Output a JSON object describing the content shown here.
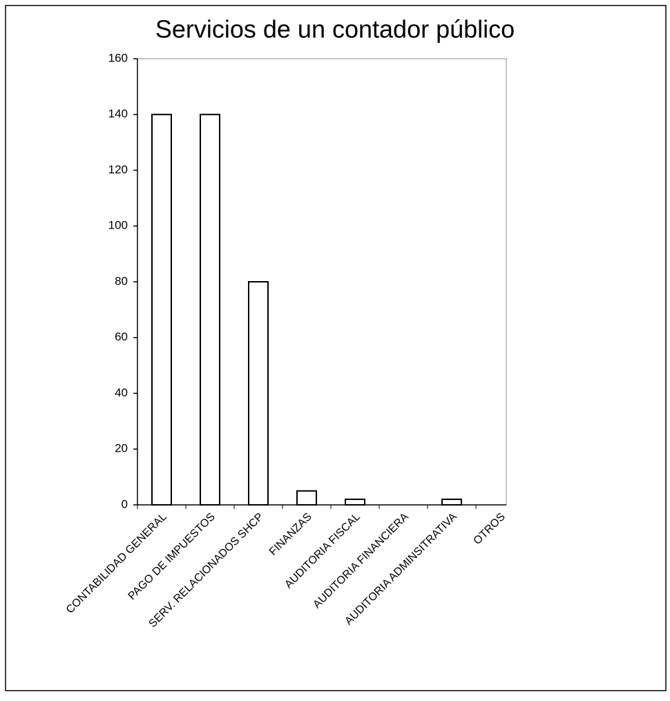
{
  "chart_data": {
    "type": "bar",
    "title": "Servicios de un contador público",
    "categories": [
      "CONTABILIDAD GENERAL",
      "PAGO DE IMPUESTOS",
      "SERV. RELACIONADOS SHCP",
      "FINANZAS",
      "AUDITORIA FISCAL",
      "AUDITORIA FINANCIERA",
      "AUDITORIA ADMINSITRATIVA",
      "OTROS"
    ],
    "values": [
      140,
      140,
      80,
      5,
      2,
      0,
      2,
      0
    ],
    "color": "#ffffff",
    "ylim": [
      0,
      160
    ],
    "yticks": [
      0,
      20,
      40,
      60,
      80,
      100,
      120,
      140,
      160
    ],
    "grid": false
  }
}
